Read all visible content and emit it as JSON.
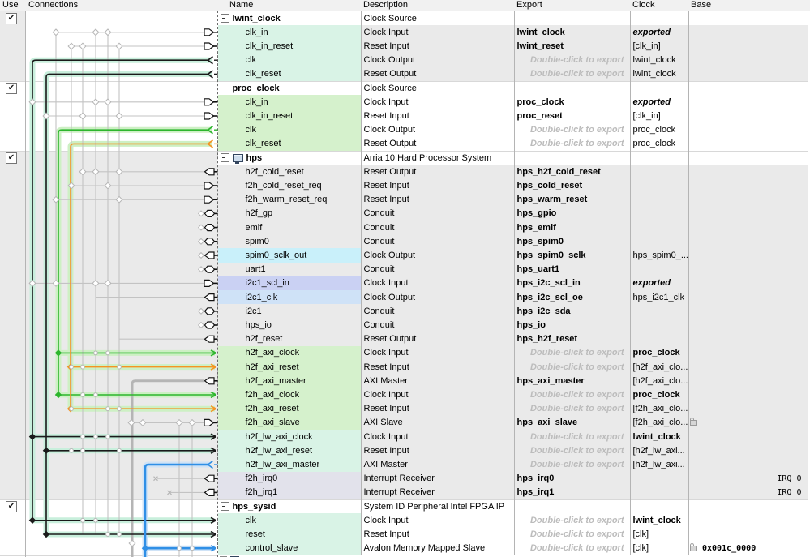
{
  "columns": [
    "Use",
    "Connections",
    "Name",
    "Description",
    "Export",
    "Clock",
    "Base"
  ],
  "placeholder_text": "Double-click to export",
  "colors": {
    "row_stripe": "#eaeaea",
    "tints": {
      "mint": "#d9f3e6",
      "green": "#d5f1cc",
      "cyan": "#c9f0fa",
      "periwinkle": "#cad1f3",
      "lightblue": "#cfe2f7",
      "grayblue": "#e2e2eb"
    },
    "wire_black": "#1a1a1a",
    "wire_green": "#2db52d",
    "wire_orange": "#f59422",
    "wire_blue": "#2f8fe6",
    "wire_gray": "#c3c3c3",
    "wire_thick_gray": "#b5b5b5",
    "glow_mint": "#c8efdc",
    "glow_green": "#cdf0c4",
    "glow_blue": "#cfe3f7"
  },
  "rows": [
    {
      "kind": "module",
      "name": "lwint_clock",
      "desc": "Clock Source",
      "checked": true
    },
    {
      "name": "clk_in",
      "desc": "Clock Input",
      "export": "lwint_clock",
      "export_type": "name",
      "clock": "exported",
      "clock_style": "bi",
      "tint": "mint",
      "port": "in"
    },
    {
      "name": "clk_in_reset",
      "desc": "Reset Input",
      "export": "lwint_reset",
      "export_type": "name",
      "clock": "[clk_in]",
      "clock_style": "n",
      "tint": "mint",
      "port": "in"
    },
    {
      "name": "clk",
      "desc": "Clock Output",
      "export_type": "ph",
      "clock": "lwint_clock",
      "clock_style": "n",
      "tint": "mint",
      "port": "chev_k"
    },
    {
      "name": "clk_reset",
      "desc": "Reset Output",
      "export_type": "ph",
      "clock": "lwint_clock",
      "clock_style": "n",
      "tint": "mint",
      "port": "chev_k"
    },
    {
      "kind": "module",
      "name": "proc_clock",
      "desc": "Clock Source",
      "checked": true
    },
    {
      "name": "clk_in",
      "desc": "Clock Input",
      "export": "proc_clock",
      "export_type": "name",
      "clock": "exported",
      "clock_style": "bi",
      "tint": "green",
      "port": "in"
    },
    {
      "name": "clk_in_reset",
      "desc": "Reset Input",
      "export": "proc_reset",
      "export_type": "name",
      "clock": "[clk_in]",
      "clock_style": "n",
      "tint": "green",
      "port": "in"
    },
    {
      "name": "clk",
      "desc": "Clock Output",
      "export_type": "ph",
      "clock": "proc_clock",
      "clock_style": "n",
      "tint": "green",
      "port": "chev_g"
    },
    {
      "name": "clk_reset",
      "desc": "Reset Output",
      "export_type": "ph",
      "clock": "proc_clock",
      "clock_style": "n",
      "tint": "green",
      "port": "chev_o"
    },
    {
      "kind": "module",
      "name": "hps",
      "desc": "Arria 10 Hard Processor System",
      "checked": true,
      "icon": true
    },
    {
      "name": "h2f_cold_reset",
      "desc": "Reset Output",
      "export": "hps_h2f_cold_reset",
      "export_type": "name",
      "port": "out"
    },
    {
      "name": "f2h_cold_reset_req",
      "desc": "Reset Input",
      "export": "hps_cold_reset",
      "export_type": "name",
      "port": "in"
    },
    {
      "name": "f2h_warm_reset_req",
      "desc": "Reset Input",
      "export": "hps_warm_reset",
      "export_type": "name",
      "port": "in"
    },
    {
      "name": "h2f_gp",
      "desc": "Conduit",
      "export": "hps_gpio",
      "export_type": "name",
      "port": "hex"
    },
    {
      "name": "emif",
      "desc": "Conduit",
      "export": "hps_emif",
      "export_type": "name",
      "port": "hex"
    },
    {
      "name": "spim0",
      "desc": "Conduit",
      "export": "hps_spim0",
      "export_type": "name",
      "port": "hex"
    },
    {
      "name": "spim0_sclk_out",
      "desc": "Clock Output",
      "export": "hps_spim0_sclk",
      "export_type": "name",
      "clock": "hps_spim0_...",
      "clock_style": "n",
      "tint": "cyan",
      "port": "out"
    },
    {
      "name": "uart1",
      "desc": "Conduit",
      "export": "hps_uart1",
      "export_type": "name",
      "port": "hex"
    },
    {
      "name": "i2c1_scl_in",
      "desc": "Clock Input",
      "export": "hps_i2c_scl_in",
      "export_type": "name",
      "clock": "exported",
      "clock_style": "bi",
      "tint": "periwinkle",
      "port": "in"
    },
    {
      "name": "i2c1_clk",
      "desc": "Clock Output",
      "export": "hps_i2c_scl_oe",
      "export_type": "name",
      "clock": "hps_i2c1_clk",
      "clock_style": "n",
      "tint": "lightblue",
      "port": "out"
    },
    {
      "name": "i2c1",
      "desc": "Conduit",
      "export": "hps_i2c_sda",
      "export_type": "name",
      "port": "hex"
    },
    {
      "name": "hps_io",
      "desc": "Conduit",
      "export": "hps_io",
      "export_type": "name",
      "port": "hex"
    },
    {
      "name": "h2f_reset",
      "desc": "Reset Output",
      "export": "hps_h2f_reset",
      "export_type": "name",
      "port": "out"
    },
    {
      "name": "h2f_axi_clock",
      "desc": "Clock Input",
      "export_type": "ph",
      "clock": "proc_clock",
      "clock_style": "b",
      "tint": "green",
      "port": "arrow_g"
    },
    {
      "name": "h2f_axi_reset",
      "desc": "Reset Input",
      "export_type": "ph",
      "clock": "[h2f_axi_clo...",
      "clock_style": "n",
      "tint": "green",
      "port": "arrow_o"
    },
    {
      "name": "h2f_axi_master",
      "desc": "AXI Master",
      "export": "hps_axi_master",
      "export_type": "name",
      "clock": "[h2f_axi_clo...",
      "clock_style": "n",
      "tint": "green",
      "port": "out"
    },
    {
      "name": "f2h_axi_clock",
      "desc": "Clock Input",
      "export_type": "ph",
      "clock": "proc_clock",
      "clock_style": "b",
      "tint": "green",
      "port": "arrow_g"
    },
    {
      "name": "f2h_axi_reset",
      "desc": "Reset Input",
      "export_type": "ph",
      "clock": "[f2h_axi_clo...",
      "clock_style": "n",
      "tint": "green",
      "port": "arrow_o"
    },
    {
      "name": "f2h_axi_slave",
      "desc": "AXI Slave",
      "export": "hps_axi_slave",
      "export_type": "name",
      "clock": "[f2h_axi_clo...",
      "clock_style": "n",
      "tint": "green",
      "port": "in",
      "base_lock": true
    },
    {
      "name": "h2f_lw_axi_clock",
      "desc": "Clock Input",
      "export_type": "ph",
      "clock": "lwint_clock",
      "clock_style": "b",
      "tint": "mint",
      "port": "arrow_k"
    },
    {
      "name": "h2f_lw_axi_reset",
      "desc": "Reset Input",
      "export_type": "ph",
      "clock": "[h2f_lw_axi...",
      "clock_style": "n",
      "tint": "mint",
      "port": "arrow_k"
    },
    {
      "name": "h2f_lw_axi_master",
      "desc": "AXI Master",
      "export_type": "ph",
      "clock": "[h2f_lw_axi...",
      "clock_style": "n",
      "tint": "mint",
      "port": "chev_b"
    },
    {
      "name": "f2h_irq0",
      "desc": "Interrupt Receiver",
      "export": "hps_irq0",
      "export_type": "name",
      "tint": "grayblue",
      "port": "out",
      "irq": "IRQ 0"
    },
    {
      "name": "f2h_irq1",
      "desc": "Interrupt Receiver",
      "export": "hps_irq1",
      "export_type": "name",
      "tint": "grayblue",
      "port": "out",
      "irq": "IRQ 0"
    },
    {
      "kind": "module",
      "name": "hps_sysid",
      "desc": "System ID Peripheral Intel FPGA IP",
      "checked": true
    },
    {
      "name": "clk",
      "desc": "Clock Input",
      "export_type": "ph",
      "clock": "lwint_clock",
      "clock_style": "b",
      "tint": "mint",
      "port": "arrow_k"
    },
    {
      "name": "reset",
      "desc": "Reset Input",
      "export_type": "ph",
      "clock": "[clk]",
      "clock_style": "n",
      "tint": "mint",
      "port": "arrow_k"
    },
    {
      "name": "control_slave",
      "desc": "Avalon Memory Mapped Slave",
      "export_type": "ph",
      "clock": "[clk]",
      "clock_style": "n",
      "tint": "mint",
      "port": "arrow_b",
      "base_lock": true,
      "base_addr": "0x001c_0000"
    }
  ]
}
